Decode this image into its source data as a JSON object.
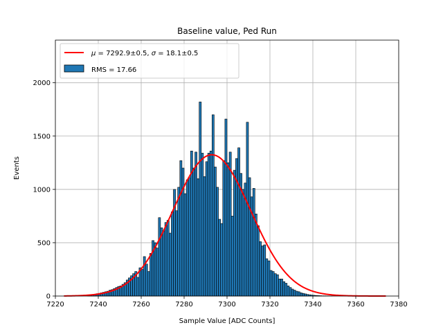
{
  "chart_data": {
    "type": "bar",
    "title": "Baseline value, Ped Run",
    "xlabel": "Sample Value [ADC Counts]",
    "ylabel": "Events",
    "xlim": [
      7220,
      7380
    ],
    "ylim": [
      0,
      2400
    ],
    "xticks": [
      7220,
      7240,
      7260,
      7280,
      7300,
      7320,
      7340,
      7360,
      7380
    ],
    "yticks": [
      0,
      500,
      1000,
      1500,
      2000
    ],
    "grid": true,
    "legend_position": "top-left",
    "bin_width": 1,
    "histogram": {
      "name": "RMS = 17.66",
      "color": "#1f77b4",
      "edgecolor": "#000000",
      "x": [
        7235,
        7236,
        7237,
        7238,
        7239,
        7240,
        7241,
        7242,
        7243,
        7244,
        7245,
        7246,
        7247,
        7248,
        7249,
        7250,
        7251,
        7252,
        7253,
        7254,
        7255,
        7256,
        7257,
        7258,
        7259,
        7260,
        7261,
        7262,
        7263,
        7264,
        7265,
        7266,
        7267,
        7268,
        7269,
        7270,
        7271,
        7272,
        7273,
        7274,
        7275,
        7276,
        7277,
        7278,
        7279,
        7280,
        7281,
        7282,
        7283,
        7284,
        7285,
        7286,
        7287,
        7288,
        7289,
        7290,
        7291,
        7292,
        7293,
        7294,
        7295,
        7296,
        7297,
        7298,
        7299,
        7300,
        7301,
        7302,
        7303,
        7304,
        7305,
        7306,
        7307,
        7308,
        7309,
        7310,
        7311,
        7312,
        7313,
        7314,
        7315,
        7316,
        7317,
        7318,
        7319,
        7320,
        7321,
        7322,
        7323,
        7324,
        7325,
        7326,
        7327,
        7328,
        7329,
        7330,
        7331,
        7332,
        7333,
        7334,
        7335,
        7336,
        7337,
        7338,
        7339,
        7340,
        7341,
        7342,
        7343,
        7344,
        7345,
        7346,
        7347,
        7348,
        7349,
        7350,
        7351,
        7352,
        7353,
        7354,
        7355
      ],
      "counts": [
        8,
        12,
        15,
        18,
        22,
        25,
        30,
        35,
        40,
        45,
        55,
        60,
        70,
        80,
        90,
        95,
        110,
        125,
        150,
        170,
        190,
        210,
        230,
        175,
        265,
        250,
        370,
        300,
        230,
        400,
        520,
        500,
        450,
        735,
        640,
        610,
        690,
        710,
        590,
        790,
        1000,
        800,
        1020,
        1270,
        1200,
        960,
        1090,
        1110,
        1360,
        1200,
        1350,
        1100,
        1820,
        1340,
        1120,
        1260,
        1340,
        1360,
        1700,
        1210,
        1020,
        720,
        680,
        1270,
        1660,
        1250,
        1350,
        750,
        1180,
        1290,
        1390,
        1150,
        1000,
        1060,
        1630,
        1110,
        930,
        1010,
        770,
        660,
        510,
        470,
        480,
        350,
        330,
        240,
        230,
        210,
        200,
        160,
        160,
        135,
        120,
        95,
        80,
        65,
        55,
        45,
        40,
        30,
        25,
        20,
        15,
        12,
        9,
        7,
        5,
        4,
        3,
        2,
        2,
        1,
        1,
        1,
        0,
        0,
        0,
        0,
        0,
        0,
        0
      ]
    },
    "fit": {
      "name": "μ = 7292.9±0.5, σ = 18.1±0.5",
      "mu": 7292.9,
      "sigma": 18.1,
      "amplitude": 1325,
      "x_range": [
        7224,
        7374
      ],
      "color": "#ff0000"
    }
  },
  "legend": {
    "fit_prefix_mu": "μ",
    "fit_eq1": " = 7292.9±0.5, ",
    "fit_prefix_sigma": "σ",
    "fit_eq2": " = 18.1±0.5",
    "hist_label": "RMS = 17.66"
  }
}
